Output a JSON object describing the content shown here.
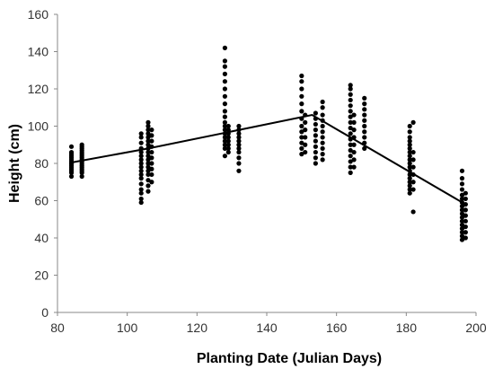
{
  "chart_data": {
    "type": "scatter",
    "title": "",
    "xlabel": "Planting Date (Julian Days)",
    "ylabel": "Height (cm)",
    "xlim": [
      80,
      200
    ],
    "ylim": [
      0,
      160
    ],
    "x_ticks": [
      80,
      100,
      120,
      140,
      160,
      180,
      200
    ],
    "y_ticks": [
      0,
      20,
      40,
      60,
      80,
      100,
      120,
      140,
      160
    ],
    "grid": false,
    "legend": "none",
    "marker_color": "#000000",
    "point_clusters": [
      {
        "x": 84,
        "y": [
          73,
          75,
          76,
          77,
          78,
          79,
          80,
          80,
          81,
          82,
          83,
          84,
          85,
          86,
          89
        ]
      },
      {
        "x": 87,
        "y": [
          73,
          75,
          76,
          77,
          78,
          79,
          80,
          81,
          82,
          83,
          84,
          85,
          86,
          87,
          88,
          89,
          90
        ]
      },
      {
        "x": 104,
        "y": [
          59,
          61,
          64,
          66,
          69,
          72,
          74,
          76,
          78,
          80,
          82,
          84,
          86,
          88,
          91,
          94,
          96
        ]
      },
      {
        "x": 106,
        "y": [
          65,
          68,
          71,
          74,
          76,
          78,
          80,
          82,
          84,
          86,
          88,
          90,
          92,
          94,
          96,
          98,
          100,
          102
        ]
      },
      {
        "x": 107,
        "y": [
          70,
          74,
          77,
          80,
          83,
          86,
          89,
          92,
          95,
          98
        ]
      },
      {
        "x": 128,
        "y": [
          84,
          88,
          90,
          92,
          94,
          96,
          98,
          100,
          102,
          105,
          108,
          112,
          116,
          120,
          124,
          128,
          132,
          135,
          142
        ]
      },
      {
        "x": 129,
        "y": [
          86,
          88,
          90,
          92,
          94,
          96,
          98,
          100
        ]
      },
      {
        "x": 132,
        "y": [
          76,
          80,
          83,
          86,
          88,
          90,
          92,
          94,
          96,
          98,
          100
        ]
      },
      {
        "x": 150,
        "y": [
          85,
          88,
          91,
          94,
          97,
          100,
          104,
          108,
          112,
          116,
          120,
          124,
          127
        ]
      },
      {
        "x": 151,
        "y": [
          86,
          90,
          94,
          98,
          102,
          106
        ]
      },
      {
        "x": 154,
        "y": [
          80,
          83,
          86,
          89,
          92,
          95,
          98,
          101,
          104,
          107
        ]
      },
      {
        "x": 156,
        "y": [
          82,
          85,
          88,
          91,
          94,
          97,
          100,
          103,
          106,
          110,
          113
        ]
      },
      {
        "x": 164,
        "y": [
          75,
          78,
          81,
          84,
          87,
          90,
          93,
          96,
          99,
          102,
          105,
          108,
          111,
          114,
          117,
          120,
          122
        ]
      },
      {
        "x": 165,
        "y": [
          78,
          82,
          86,
          90,
          94,
          98,
          102,
          106
        ]
      },
      {
        "x": 168,
        "y": [
          88,
          91,
          94,
          97,
          100,
          103,
          106,
          109,
          112,
          115
        ]
      },
      {
        "x": 181,
        "y": [
          64,
          66,
          68,
          70,
          72,
          74,
          76,
          78,
          80,
          82,
          84,
          86,
          88,
          90,
          92,
          94,
          97,
          100
        ]
      },
      {
        "x": 182,
        "y": [
          54,
          66,
          70,
          74,
          78,
          82,
          86,
          102
        ]
      },
      {
        "x": 196,
        "y": [
          39,
          41,
          43,
          45,
          47,
          49,
          51,
          53,
          55,
          57,
          59,
          61,
          63,
          66,
          69,
          72,
          76
        ]
      },
      {
        "x": 197,
        "y": [
          40,
          43,
          46,
          49,
          52,
          55,
          58,
          61,
          64
        ]
      }
    ],
    "trend_line": {
      "x": [
        84,
        106,
        153,
        197
      ],
      "y": [
        80.5,
        88,
        106,
        58
      ]
    }
  }
}
